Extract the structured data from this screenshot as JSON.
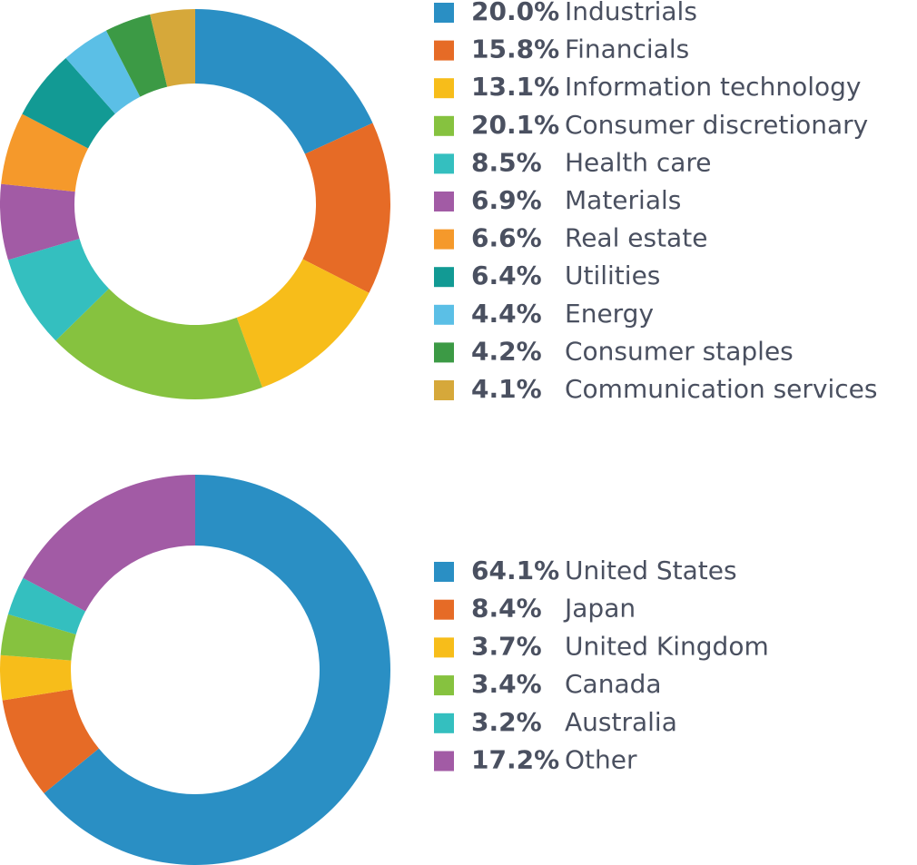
{
  "chart_data": [
    {
      "type": "pie",
      "categories": [
        "Industrials",
        "Financials",
        "Information technology",
        "Consumer discretionary",
        "Health care",
        "Materials",
        "Real estate",
        "Utilities",
        "Energy",
        "Consumer staples",
        "Communication services"
      ],
      "values": [
        20.0,
        15.8,
        13.1,
        20.1,
        8.5,
        6.9,
        6.6,
        6.4,
        4.4,
        4.2,
        4.1
      ],
      "value_labels": [
        "20.0%",
        "15.8%",
        "13.1%",
        "20.1%",
        "8.5%",
        "6.9%",
        "6.6%",
        "6.4%",
        "4.4%",
        "4.2%",
        "4.1%"
      ],
      "colors": [
        "#2a8fc4",
        "#e66b26",
        "#f7bd1a",
        "#86c23f",
        "#34bfbf",
        "#a25ba5",
        "#f5992b",
        "#129a94",
        "#5bbfe6",
        "#3c9a45",
        "#d6a83a"
      ]
    },
    {
      "type": "pie",
      "categories": [
        "United States",
        "Japan",
        "United Kingdom",
        "Canada",
        "Australia",
        "Other"
      ],
      "values": [
        64.1,
        8.4,
        3.7,
        3.4,
        3.2,
        17.2
      ],
      "value_labels": [
        "64.1%",
        "8.4%",
        "3.7%",
        "3.4%",
        "3.2%",
        "17.2%"
      ],
      "colors": [
        "#2a8fc4",
        "#e66b26",
        "#f7bd1a",
        "#86c23f",
        "#34bfbf",
        "#a25ba5"
      ]
    }
  ]
}
